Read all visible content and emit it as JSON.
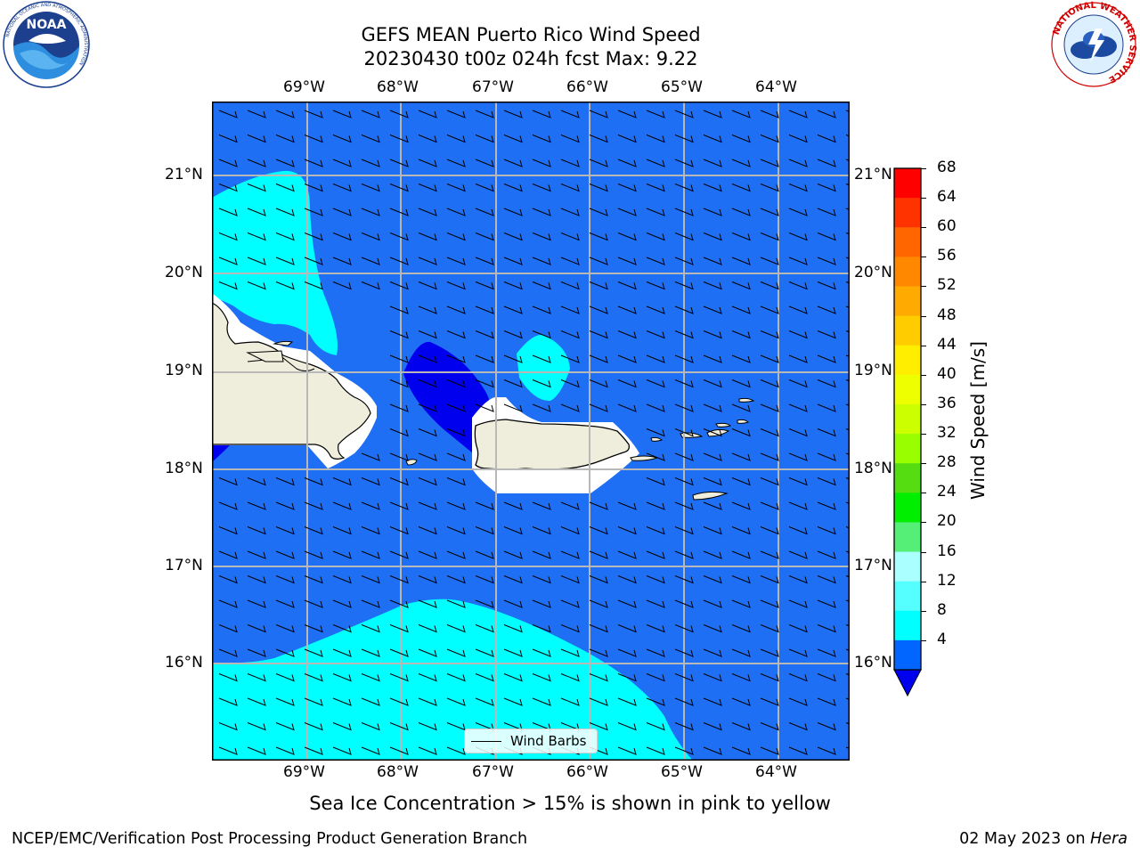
{
  "title": {
    "line1": "GEFS MEAN Puerto Rico Wind Speed",
    "line2": "20230430 t00z 024h fcst   Max: 9.22"
  },
  "lon_labels": [
    "69°W",
    "68°W",
    "67°W",
    "66°W",
    "65°W",
    "64°W"
  ],
  "lat_labels": [
    "21°N",
    "20°N",
    "19°N",
    "18°N",
    "17°N",
    "16°N"
  ],
  "colorbar": {
    "label": "Wind Speed [m/s]",
    "ticks": [
      "68",
      "64",
      "60",
      "56",
      "52",
      "48",
      "44",
      "40",
      "36",
      "32",
      "28",
      "24",
      "20",
      "16",
      "12",
      "8",
      "4"
    ],
    "colors": [
      "#ff0000",
      "#ff3300",
      "#ff6600",
      "#ff8800",
      "#ffaa00",
      "#ffcc00",
      "#ffee00",
      "#eeff00",
      "#ccff00",
      "#99ff00",
      "#55dd11",
      "#00ee00",
      "#55ee77",
      "#aaffff",
      "#55ffff",
      "#00ffff",
      "#0066ff"
    ],
    "under_color": "#0000ee"
  },
  "legend": {
    "label": "Wind Barbs"
  },
  "note": "Sea Ice Concentration > 15% is shown in pink to yellow",
  "footer": {
    "left": "NCEP/EMC/Verification Post Processing Product Generation Branch",
    "right_date": "02 May 2023 on ",
    "right_host": "Hera"
  },
  "logos": {
    "noaa_text": "NOAA",
    "noaa_ring": "NATIONAL OCEANIC AND ATMOSPHERIC ADMINISTRATION",
    "noaa_ring_bottom": "U.S. DEPARTMENT OF COMMERCE",
    "nws_ring": "NATIONAL WEATHER SERVICE"
  },
  "colors": {
    "ocean_base": "#1f6ff5",
    "calm_area": "#0000ee",
    "fresh_area": "#00ffff",
    "land": "#efeedc"
  }
}
